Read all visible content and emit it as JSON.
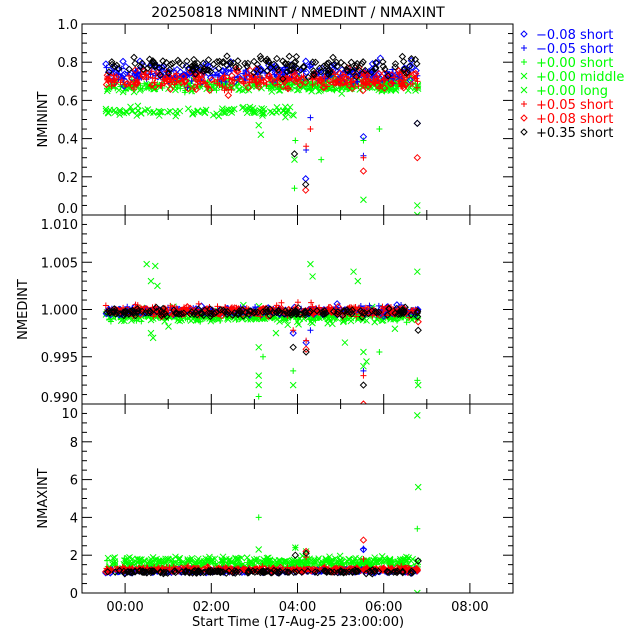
{
  "chart_data": {
    "type": "scatter",
    "title": "20250818 NMININT / NMEDINT / NMAXINT",
    "xlabel": "Start Time (17-Aug-25 23:00:00)",
    "x_units": "hours since 17-Aug-25 23:00:00",
    "xlim": [
      0,
      10
    ],
    "x_ticks": [
      1,
      3,
      5,
      7,
      9
    ],
    "x_tick_labels": [
      "00:00",
      "02:00",
      "04:00",
      "06:00",
      "08:00"
    ],
    "legend_placement": "outside-right-top",
    "series": [
      {
        "id": "s0",
        "label": "−0.08 short",
        "color": "#0000ff",
        "symbol": "diamond"
      },
      {
        "id": "s1",
        "label": "−0.05 short",
        "color": "#0000ff",
        "symbol": "plus"
      },
      {
        "id": "s2",
        "label": "+0.00 short",
        "color": "#00ff00",
        "symbol": "plus"
      },
      {
        "id": "s3",
        "label": "+0.00 middle",
        "color": "#00ff00",
        "symbol": "x"
      },
      {
        "id": "s4",
        "label": "+0.00 long",
        "color": "#00ff00",
        "symbol": "x"
      },
      {
        "id": "s5",
        "label": "+0.05 short",
        "color": "#ff0000",
        "symbol": "plus"
      },
      {
        "id": "s6",
        "label": "+0.08 short",
        "color": "#ff0000",
        "symbol": "diamond"
      },
      {
        "id": "s7",
        "label": "+0.35 short",
        "color": "#000000",
        "symbol": "diamond"
      }
    ],
    "panels": [
      {
        "ylabel": "NMININT",
        "ylim": [
          0.0,
          1.0
        ],
        "y_ticks": [
          0.0,
          0.2,
          0.4,
          0.6,
          0.8,
          1.0
        ],
        "y_tick_labels": [
          "0.0",
          "0.2",
          "0.4",
          "0.6",
          "0.8",
          "1.0"
        ],
        "y_minor_step": 0.05,
        "bands": {
          "s7": [
            [
              0.55,
              7.8,
              0.78,
              0.025
            ]
          ],
          "s0": [
            [
              0.55,
              7.8,
              0.75,
              0.025
            ]
          ],
          "s1": [
            [
              0.55,
              7.8,
              0.73,
              0.02
            ]
          ],
          "s6": [
            [
              0.55,
              7.8,
              0.71,
              0.03
            ]
          ],
          "s5": [
            [
              0.55,
              7.8,
              0.7,
              0.02
            ]
          ],
          "s2": [
            [
              0.55,
              7.8,
              0.68,
              0.015
            ]
          ],
          "s3": [
            [
              0.55,
              7.8,
              0.67,
              0.015
            ]
          ],
          "s4": [
            [
              0.55,
              5.0,
              0.54,
              0.012
            ],
            [
              5.0,
              7.8,
              0.69,
              0.02
            ]
          ]
        },
        "outliers": {
          "s7": [
            [
              7.78,
              0.48
            ],
            [
              5.19,
              0.16
            ],
            [
              4.93,
              0.32
            ]
          ],
          "s0": [
            [
              5.19,
              0.19
            ],
            [
              6.53,
              0.41
            ],
            [
              7.78,
              0.48
            ]
          ],
          "s1": [
            [
              6.53,
              0.31
            ],
            [
              5.2,
              0.34
            ],
            [
              5.3,
              0.51
            ]
          ],
          "s2": [
            [
              6.53,
              0.39
            ],
            [
              4.93,
              0.14
            ],
            [
              6.9,
              0.45
            ],
            [
              5.55,
              0.29
            ],
            [
              4.95,
              0.39
            ]
          ],
          "s3": [
            [
              6.53,
              0.08
            ],
            [
              4.93,
              0.29
            ],
            [
              7.78,
              0.05
            ],
            [
              7.78,
              0.0
            ],
            [
              4.15,
              0.42
            ],
            [
              4.1,
              0.47
            ]
          ],
          "s4": [],
          "s5": [
            [
              6.53,
              0.3
            ],
            [
              5.2,
              0.36
            ],
            [
              5.3,
              0.45
            ]
          ],
          "s6": [
            [
              6.53,
              0.23
            ],
            [
              5.19,
              0.13
            ],
            [
              7.78,
              0.3
            ]
          ]
        }
      },
      {
        "ylabel": "NMEDINT",
        "ylim": [
          0.99,
          1.01
        ],
        "y_ticks": [
          0.99,
          0.995,
          1.0,
          1.005,
          1.01
        ],
        "y_tick_labels": [
          "0.990",
          "0.995",
          "1.000",
          "1.005",
          "1.010"
        ],
        "y_minor_step": 0.001,
        "bands": {
          "s7": [
            [
              0.55,
              7.8,
              0.9997,
              0.0002
            ]
          ],
          "s0": [
            [
              0.55,
              7.8,
              0.9998,
              0.0002
            ]
          ],
          "s1": [
            [
              0.55,
              7.8,
              0.9999,
              0.0002
            ]
          ],
          "s6": [
            [
              0.55,
              7.8,
              0.9998,
              0.0002
            ]
          ],
          "s5": [
            [
              0.55,
              7.8,
              0.9999,
              0.0003
            ]
          ],
          "s2": [
            [
              0.55,
              7.8,
              0.9993,
              0.0003
            ]
          ],
          "s3": [
            [
              0.55,
              7.8,
              0.9994,
              0.0004
            ]
          ],
          "s4": [
            [
              0.55,
              7.8,
              0.9993,
              0.0003
            ]
          ]
        },
        "outliers": {
          "s7": [
            [
              4.9,
              0.996
            ],
            [
              5.2,
              0.9955
            ],
            [
              6.53,
              0.992
            ],
            [
              7.8,
              0.9978
            ]
          ],
          "s0": [
            [
              5.2,
              0.9965
            ],
            [
              4.9,
              0.9975
            ],
            [
              5.92,
              1.0006
            ]
          ],
          "s1": [
            [
              6.53,
              0.9935
            ],
            [
              5.3,
              0.9978
            ]
          ],
          "s2": [
            [
              4.1,
              0.9908
            ],
            [
              4.9,
              0.9935
            ],
            [
              6.9,
              0.9955
            ],
            [
              7.78,
              0.9925
            ],
            [
              4.2,
              0.995
            ]
          ],
          "s3": [
            [
              4.1,
              0.996
            ],
            [
              4.1,
              0.993
            ],
            [
              4.1,
              0.992
            ],
            [
              4.9,
              0.992
            ],
            [
              6.53,
              0.9955
            ],
            [
              6.53,
              0.994
            ],
            [
              7.78,
              1.004
            ],
            [
              7.8,
              0.992
            ],
            [
              5.3,
              1.0048
            ],
            [
              5.35,
              1.0035
            ],
            [
              1.5,
              1.0048
            ],
            [
              1.6,
              1.003
            ],
            [
              1.7,
              1.0046
            ],
            [
              1.75,
              1.0025
            ],
            [
              6.3,
              1.004
            ],
            [
              6.4,
              1.003
            ],
            [
              1.6,
              0.9975
            ],
            [
              1.65,
              0.997
            ]
          ],
          "s4": [
            [
              6.6,
              0.9945
            ],
            [
              4.5,
              0.9975
            ],
            [
              6.1,
              0.9965
            ]
          ],
          "s5": [
            [
              6.53,
              0.993
            ],
            [
              5.2,
              0.9967
            ],
            [
              4.9,
              0.9978
            ],
            [
              5.35,
              1.0003
            ]
          ],
          "s6": [
            [
              6.53,
              0.99
            ],
            [
              5.2,
              0.9958
            ],
            [
              7.8,
              0.9987
            ]
          ]
        }
      },
      {
        "ylabel": "NMAXINT",
        "ylim": [
          0,
          10
        ],
        "y_ticks": [
          0,
          2,
          4,
          6,
          8,
          10
        ],
        "y_tick_labels": [
          "0",
          "2",
          "4",
          "6",
          "8",
          "10"
        ],
        "y_minor_step": 0.5,
        "bands": {
          "s7": [
            [
              0.55,
              7.8,
              1.12,
              0.04
            ]
          ],
          "s0": [
            [
              0.55,
              7.8,
              1.15,
              0.04
            ]
          ],
          "s1": [
            [
              0.55,
              7.8,
              1.18,
              0.04
            ]
          ],
          "s6": [
            [
              0.55,
              7.8,
              1.22,
              0.05
            ]
          ],
          "s5": [
            [
              0.55,
              7.8,
              1.28,
              0.05
            ]
          ],
          "s2": [
            [
              0.55,
              7.8,
              1.45,
              0.12
            ]
          ],
          "s3": [
            [
              0.55,
              7.8,
              1.7,
              0.12
            ]
          ],
          "s4": [
            [
              0.55,
              7.8,
              1.6,
              0.15
            ]
          ]
        },
        "outliers": {
          "s7": [
            [
              4.95,
              2.0
            ],
            [
              5.2,
              2.1
            ],
            [
              7.8,
              1.7
            ]
          ],
          "s0": [
            [
              6.53,
              2.3
            ]
          ],
          "s1": [
            [
              6.53,
              2.35
            ]
          ],
          "s2": [
            [
              7.78,
              3.4
            ],
            [
              4.1,
              4.0
            ],
            [
              4.95,
              2.4
            ]
          ],
          "s3": [
            [
              7.78,
              9.4
            ],
            [
              7.8,
              5.6
            ],
            [
              4.95,
              2.4
            ],
            [
              5.2,
              2.2
            ],
            [
              4.1,
              2.3
            ],
            [
              7.78,
              0.0
            ]
          ],
          "s4": [],
          "s5": [
            [
              6.53,
              1.8
            ],
            [
              5.2,
              1.9
            ]
          ],
          "s6": [
            [
              6.53,
              2.8
            ],
            [
              5.2,
              2.2
            ]
          ]
        }
      }
    ]
  }
}
